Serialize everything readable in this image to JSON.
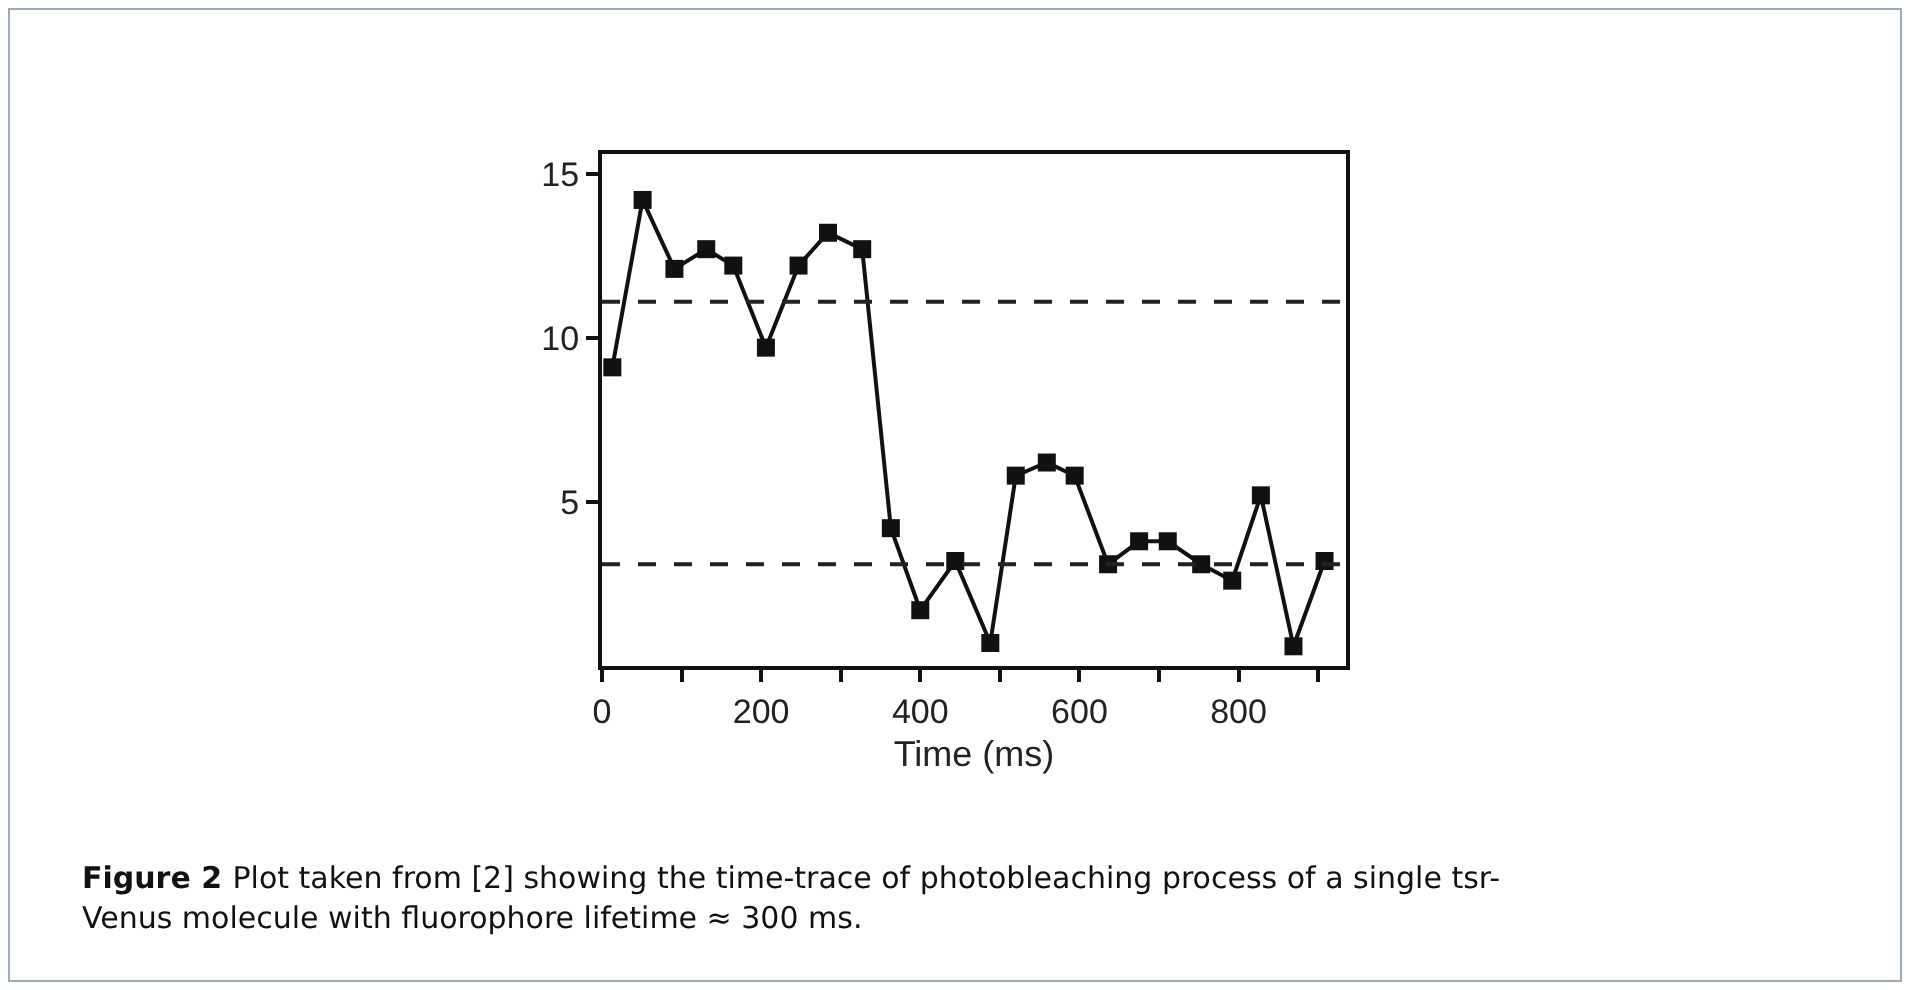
{
  "chart_data": {
    "type": "line",
    "xlabel": "Time (ms)",
    "x": [
      13,
      51,
      91,
      131,
      165,
      206,
      247,
      284,
      327,
      363,
      400,
      444,
      488,
      520,
      559,
      594,
      636,
      675,
      711,
      753,
      792,
      828,
      869,
      908
    ],
    "series": [
      {
        "color": "#111111",
        "values": [
          9.1,
          14.2,
          12.1,
          12.7,
          12.2,
          9.7,
          12.2,
          13.2,
          12.7,
          4.2,
          1.7,
          3.2,
          0.7,
          5.8,
          6.2,
          5.8,
          3.1,
          3.8,
          3.8,
          3.1,
          2.6,
          5.2,
          0.6,
          3.2
        ]
      }
    ],
    "xlim": [
      0,
      935
    ],
    "xticks": [
      0,
      {
        "value": 100,
        "label": null
      },
      200,
      {
        "value": 300,
        "label": null
      },
      400,
      {
        "value": 500,
        "label": null
      },
      600,
      {
        "value": 700,
        "label": null
      },
      800,
      {
        "value": 900,
        "label": null
      }
    ],
    "ylim": [
      0,
      15.6
    ],
    "yticks": [
      5,
      10,
      15
    ],
    "ref_lines": [
      {
        "axis": "y",
        "value": 11.1,
        "line_style": "dashed",
        "color": "#222222"
      },
      {
        "axis": "y",
        "value": 3.1,
        "line_style": "dashed",
        "color": "#222222"
      }
    ],
    "marker": "square",
    "line_style": "solid",
    "grid": false,
    "annotations": [
      "Figure 2",
      "Plot taken from [2] showing the time-trace of photobleaching process of a single tsr-Venus molecule with fluorophore lifetime ≈ 300 ms."
    ]
  }
}
